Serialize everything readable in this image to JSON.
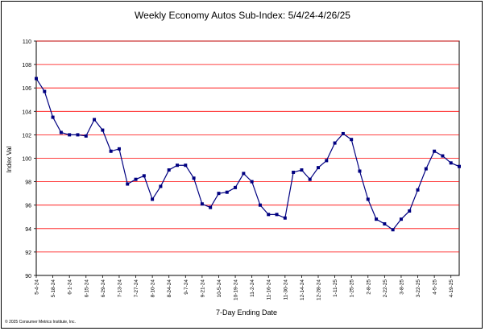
{
  "chart_data": {
    "type": "line",
    "title": "Weekly Economy Autos Sub-Index: 5/4/24-4/26/25",
    "xlabel": "7-Day Ending Date",
    "ylabel": "Index Val",
    "ylim": [
      90,
      110
    ],
    "yticks": [
      90,
      92,
      94,
      96,
      98,
      100,
      102,
      104,
      106,
      108,
      110
    ],
    "grid": true,
    "series_color": "#000080",
    "grid_color": "#ff0000",
    "tick_labels": [
      "5-4-24",
      "5-18-24",
      "6-1-24",
      "6-15-24",
      "6-29-24",
      "7-13-24",
      "7-27-24",
      "8-10-24",
      "8-24-24",
      "9-7-24",
      "9-21-24",
      "10-5-24",
      "10-19-24",
      "11-2-24",
      "11-16-24",
      "11-30-24",
      "12-14-24",
      "12-28-24",
      "1-11-25",
      "1-25-25",
      "2-8-25",
      "2-22-25",
      "3-8-25",
      "3-22-25",
      "4-5-25",
      "4-19-25"
    ],
    "series": [
      {
        "values": [
          106.8,
          105.7,
          103.5,
          102.2,
          102.0,
          102.0,
          101.9,
          103.3,
          102.4,
          100.6,
          100.8,
          97.8,
          98.2,
          98.5,
          96.5,
          97.6,
          99.0,
          99.4,
          99.4,
          98.3,
          96.1,
          95.8,
          97.0,
          97.1,
          97.5,
          98.7,
          98.0,
          96.0,
          95.2,
          95.2,
          94.9,
          98.8,
          99.0,
          98.2,
          99.2,
          99.8,
          101.3,
          102.1,
          101.6,
          98.9,
          96.5,
          94.8,
          94.4,
          93.9,
          94.8,
          95.5,
          97.3,
          99.1,
          100.6,
          100.2,
          99.6,
          99.3
        ]
      }
    ]
  },
  "footer": {
    "copyright": "© 2025 Consumer Metrics Institute, Inc."
  }
}
